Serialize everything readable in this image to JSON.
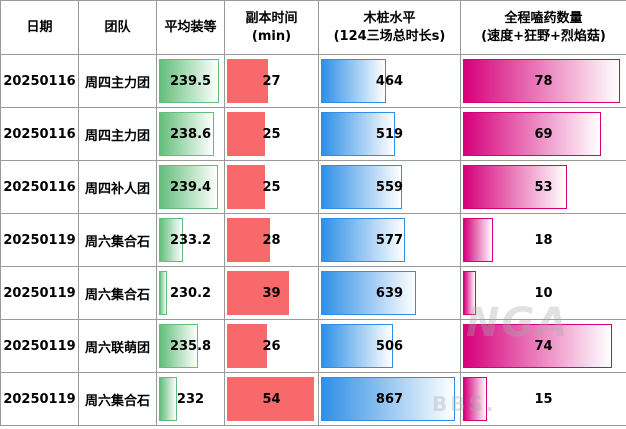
{
  "headers": {
    "date": "日期",
    "team": "团队",
    "gear": "平均装等",
    "dungeon_time_line1": "副本时间",
    "dungeon_time_line2": "(min)",
    "dummy_line1": "木桩水平",
    "dummy_line2": "(124三场总时长s)",
    "potions_line1": "全程嗑药数量",
    "potions_line2": "(速度+狂野+烈焰菇)"
  },
  "rows": [
    {
      "date": "20250116",
      "team": "周四主力团",
      "gear": "239.5",
      "time": "27",
      "dummy": "464",
      "potions": "78"
    },
    {
      "date": "20250116",
      "team": "周四主力团",
      "gear": "238.6",
      "time": "25",
      "dummy": "519",
      "potions": "69"
    },
    {
      "date": "20250116",
      "team": "周四补人团",
      "gear": "239.4",
      "time": "25",
      "dummy": "559",
      "potions": "53"
    },
    {
      "date": "20250119",
      "team": "周六集合石",
      "gear": "233.2",
      "time": "28",
      "dummy": "577",
      "potions": "18"
    },
    {
      "date": "20250119",
      "team": "周六集合石",
      "gear": "230.2",
      "time": "39",
      "dummy": "639",
      "potions": "10"
    },
    {
      "date": "20250119",
      "team": "周六联萌团",
      "gear": "235.8",
      "time": "26",
      "dummy": "506",
      "potions": "74"
    },
    {
      "date": "20250119",
      "team": "周六集合石",
      "gear": "232",
      "time": "54",
      "dummy": "867",
      "potions": "15"
    }
  ],
  "bar_colors": {
    "gear": "#63be7b",
    "time": "#f8696b",
    "dummy": "#2f8fe6",
    "potions": "#d6007b"
  },
  "watermark": {
    "line1": "NGA",
    "line2": "BBS."
  }
}
